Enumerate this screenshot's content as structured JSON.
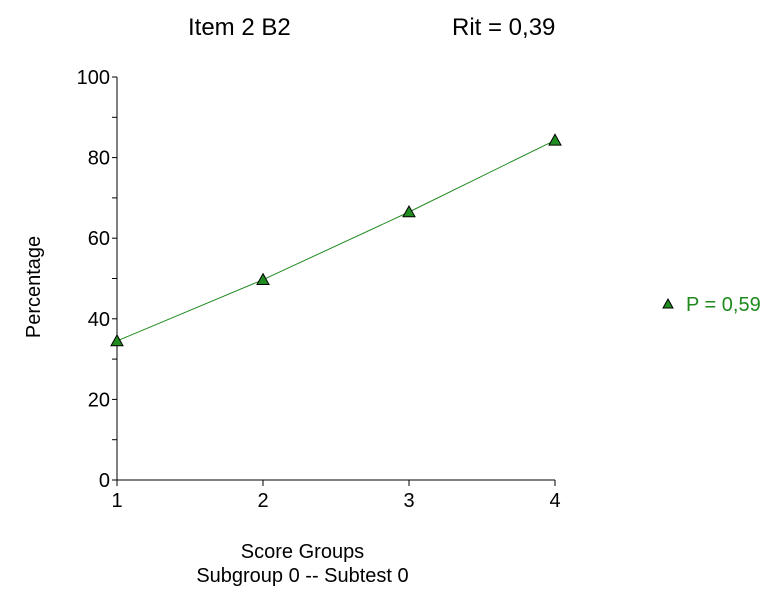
{
  "title_left": "Item 2   B2",
  "title_right": "Rit = 0,39",
  "chart_data": {
    "type": "line",
    "x": [
      1,
      2,
      3,
      4
    ],
    "series": [
      {
        "name": "P = 0,59",
        "values": [
          34.5,
          49.7,
          66.5,
          84.3
        ]
      }
    ],
    "xlabel": "Score Groups",
    "ylabel": "Percentage",
    "subtitle": "Subgroup 0  --  Subtest 0",
    "xlim": [
      1,
      4
    ],
    "ylim": [
      0,
      100
    ],
    "xticks": [
      "1",
      "2",
      "3",
      "4"
    ],
    "yticks": [
      "0",
      "20",
      "40",
      "60",
      "80",
      "100"
    ],
    "grid": false,
    "legend_position": "right",
    "series_color": "#1e8a1e",
    "marker_fill": "#1f8c1f",
    "marker": "triangle"
  }
}
